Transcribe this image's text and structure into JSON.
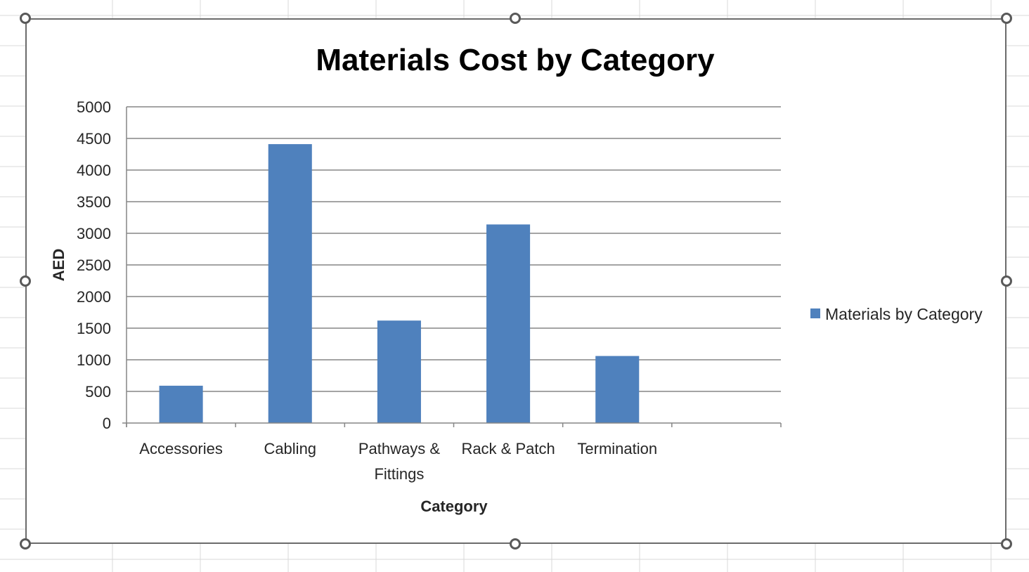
{
  "chart_data": {
    "type": "bar",
    "title": "Materials Cost by Category",
    "xlabel": "Category",
    "ylabel": "AED",
    "categories": [
      "Accessories",
      "Cabling",
      "Pathways & Fittings",
      "Rack & Patch",
      "Termination",
      ""
    ],
    "category_lines": [
      [
        "Accessories"
      ],
      [
        "Cabling"
      ],
      [
        "Pathways &",
        "Fittings"
      ],
      [
        "Rack & Patch"
      ],
      [
        "Termination"
      ],
      []
    ],
    "series": [
      {
        "name": "Materials by Category",
        "values": [
          590,
          4410,
          1620,
          3140,
          1060,
          null
        ],
        "color": "#4f81bd"
      }
    ],
    "ylim": [
      0,
      5000
    ],
    "yticks": [
      "0",
      "500",
      "1000",
      "1500",
      "2000",
      "2500",
      "3000",
      "3500",
      "4000",
      "4500",
      "5000"
    ],
    "grid": true,
    "legend_position": "right"
  },
  "colors": {
    "bar": "#4f81bd",
    "gridline": "#868686",
    "frame": "#6b6b6b",
    "sheet_grid": "#d9d9d9"
  }
}
